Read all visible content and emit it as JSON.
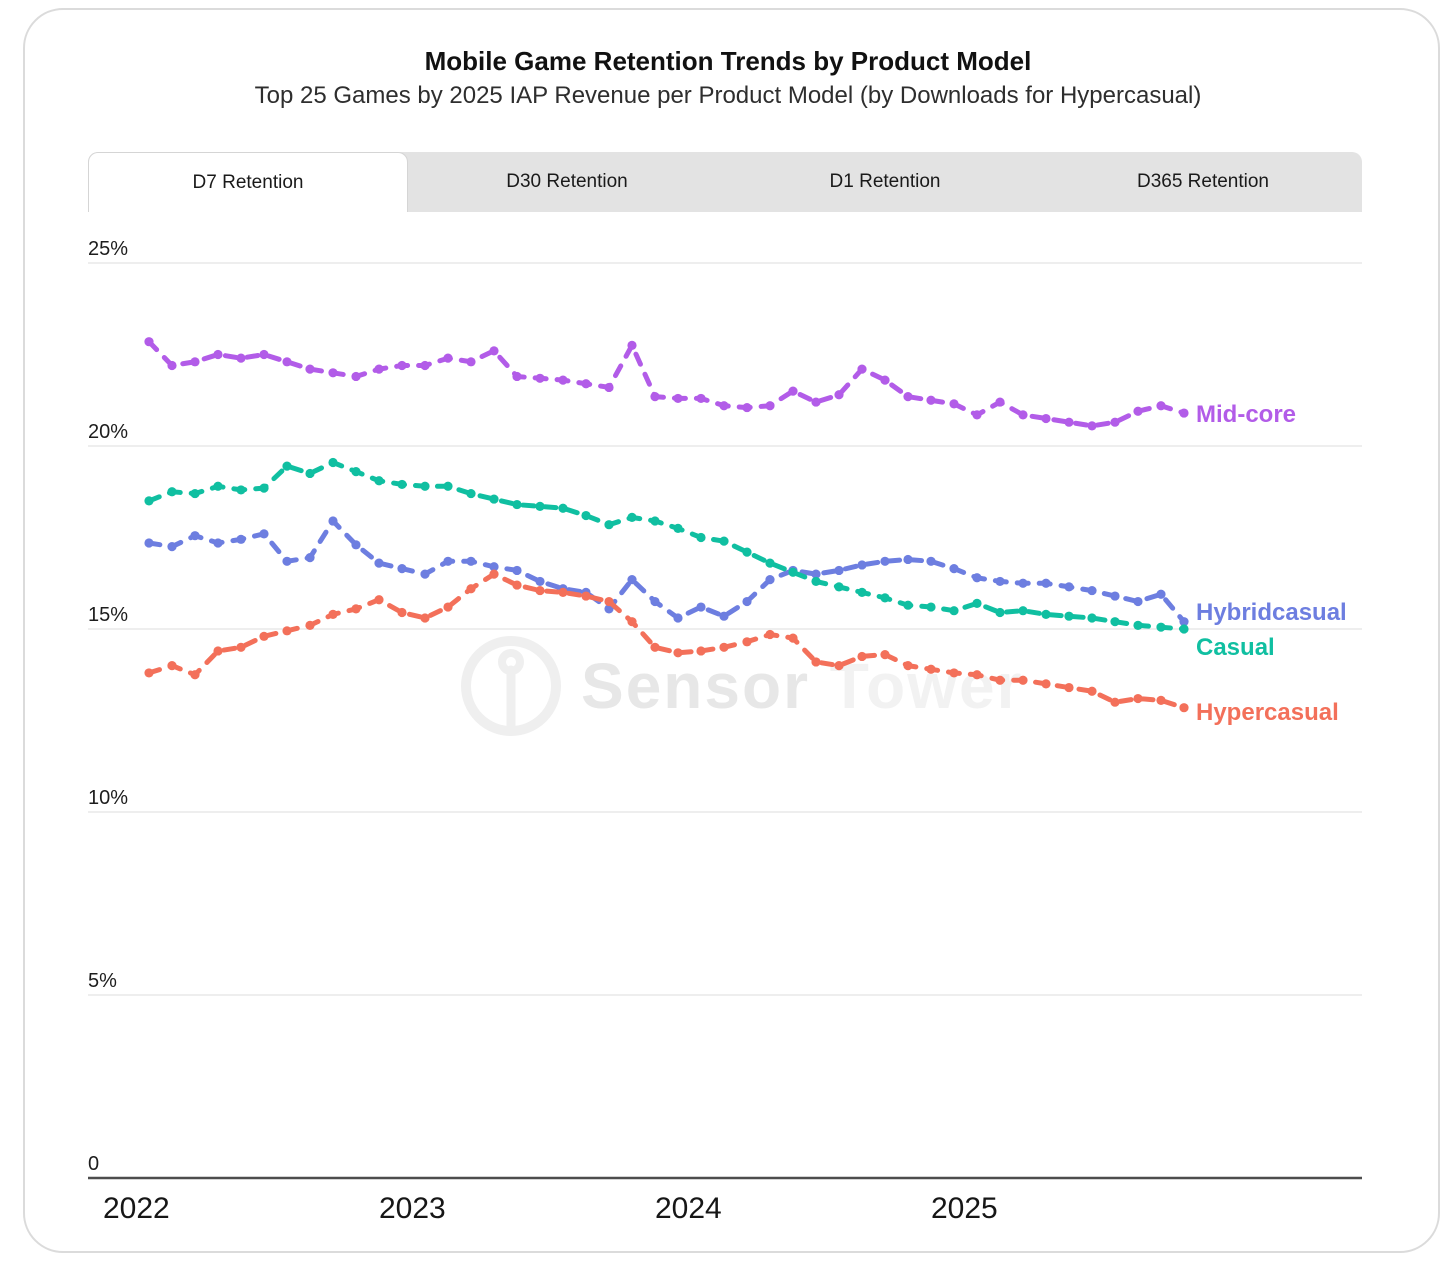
{
  "header": {
    "title": "Mobile Game Retention Trends by Product Model",
    "subtitle": "Top 25 Games by 2025 IAP Revenue per Product Model (by Downloads for Hypercasual)"
  },
  "tabs": {
    "active_index": 0,
    "items": [
      {
        "label": "D7 Retention"
      },
      {
        "label": "D30 Retention"
      },
      {
        "label": "D1 Retention"
      },
      {
        "label": "D365 Retention"
      }
    ]
  },
  "watermark": {
    "text_primary": "Sensor",
    "text_secondary": "Tower"
  },
  "chart_data": {
    "type": "line",
    "title": "Mobile Game Retention Trends by Product Model",
    "xlabel": "",
    "ylabel": "",
    "ylim": [
      0,
      25
    ],
    "grid": "horizontal",
    "legend_position": "right-end-of-line",
    "line_style": "dashed-with-dot-markers",
    "y_ticks": [
      {
        "value": 25,
        "label": "25%"
      },
      {
        "value": 20,
        "label": "20%"
      },
      {
        "value": 15,
        "label": "15%"
      },
      {
        "value": 10,
        "label": "10%"
      },
      {
        "value": 5,
        "label": "5%"
      },
      {
        "value": 0,
        "label": "0"
      }
    ],
    "x_tick_labels": [
      "2022",
      "2023",
      "2024",
      "2025"
    ],
    "x": [
      "2022-01",
      "2022-02",
      "2022-03",
      "2022-04",
      "2022-05",
      "2022-06",
      "2022-07",
      "2022-08",
      "2022-09",
      "2022-10",
      "2022-11",
      "2022-12",
      "2023-01",
      "2023-02",
      "2023-03",
      "2023-04",
      "2023-05",
      "2023-06",
      "2023-07",
      "2023-08",
      "2023-09",
      "2023-10",
      "2023-11",
      "2023-12",
      "2024-01",
      "2024-02",
      "2024-03",
      "2024-04",
      "2024-05",
      "2024-06",
      "2024-07",
      "2024-08",
      "2024-09",
      "2024-10",
      "2024-11",
      "2024-12",
      "2025-01",
      "2025-02",
      "2025-03",
      "2025-04",
      "2025-05",
      "2025-06",
      "2025-07",
      "2025-08",
      "2025-09",
      "2025-10"
    ],
    "unit": "%",
    "series": [
      {
        "name": "Mid-core",
        "color": "#b25ce8",
        "values": [
          22.85,
          22.2,
          22.3,
          22.5,
          22.4,
          22.5,
          22.3,
          22.1,
          22.0,
          21.9,
          22.1,
          22.2,
          22.2,
          22.4,
          22.3,
          22.6,
          21.9,
          21.85,
          21.8,
          21.7,
          21.6,
          22.75,
          21.35,
          21.3,
          21.3,
          21.1,
          21.05,
          21.1,
          21.5,
          21.2,
          21.4,
          22.1,
          21.8,
          21.35,
          21.25,
          21.15,
          20.85,
          21.2,
          20.85,
          20.75,
          20.65,
          20.55,
          20.65,
          20.95,
          21.1,
          20.9
        ]
      },
      {
        "name": "Hybridcasual",
        "color": "#6d7ee0",
        "values": [
          17.35,
          17.25,
          17.55,
          17.35,
          17.45,
          17.6,
          16.85,
          16.95,
          17.95,
          17.3,
          16.8,
          16.65,
          16.5,
          16.85,
          16.85,
          16.7,
          16.6,
          16.3,
          16.1,
          16.0,
          15.55,
          16.35,
          15.75,
          15.3,
          15.6,
          15.35,
          15.75,
          16.35,
          16.6,
          16.5,
          16.6,
          16.75,
          16.85,
          16.9,
          16.85,
          16.65,
          16.4,
          16.3,
          16.25,
          16.25,
          16.15,
          16.05,
          15.9,
          15.75,
          15.95,
          15.2
        ]
      },
      {
        "name": "Casual",
        "color": "#10bfa1",
        "values": [
          18.5,
          18.75,
          18.7,
          18.9,
          18.8,
          18.85,
          19.45,
          19.25,
          19.55,
          19.3,
          19.05,
          18.95,
          18.9,
          18.9,
          18.7,
          18.55,
          18.4,
          18.35,
          18.3,
          18.1,
          17.85,
          18.05,
          17.95,
          17.75,
          17.5,
          17.4,
          17.1,
          16.8,
          16.55,
          16.3,
          16.15,
          16.0,
          15.85,
          15.65,
          15.6,
          15.5,
          15.7,
          15.45,
          15.5,
          15.4,
          15.35,
          15.3,
          15.2,
          15.1,
          15.05,
          15.0
        ]
      },
      {
        "name": "Hypercasual",
        "color": "#f3705a",
        "values": [
          13.8,
          14.0,
          13.75,
          14.4,
          14.5,
          14.8,
          14.95,
          15.1,
          15.4,
          15.55,
          15.8,
          15.45,
          15.3,
          15.6,
          16.1,
          16.5,
          16.2,
          16.05,
          16.0,
          15.9,
          15.75,
          15.2,
          14.5,
          14.35,
          14.4,
          14.5,
          14.65,
          14.85,
          14.75,
          14.1,
          14.0,
          14.25,
          14.3,
          14.0,
          13.9,
          13.8,
          13.75,
          13.6,
          13.6,
          13.5,
          13.4,
          13.3,
          13.0,
          13.1,
          13.05,
          12.85
        ]
      }
    ]
  }
}
